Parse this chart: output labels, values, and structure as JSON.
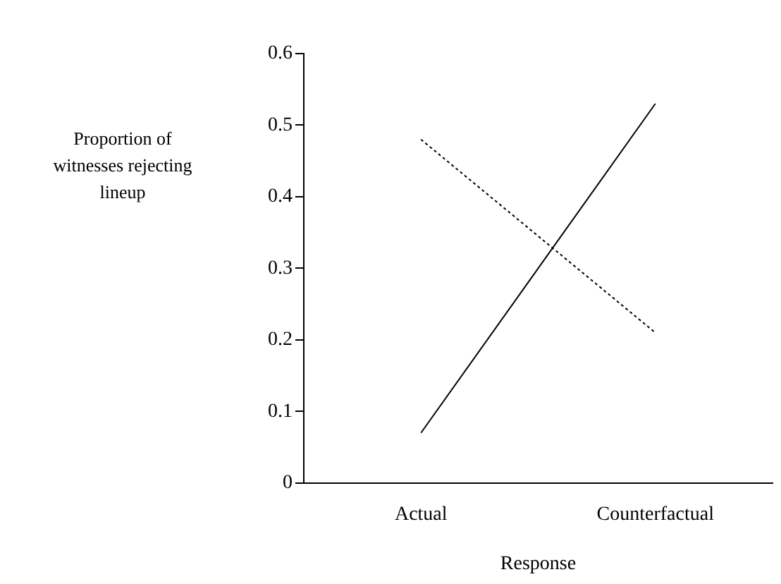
{
  "chart_data": {
    "type": "line",
    "xlabel": "Response",
    "ylabel": "Proportion of witnesses rejecting lineup",
    "categories": [
      "Actual",
      "Counterfactual"
    ],
    "series": [
      {
        "color": "#000000",
        "line_style": "solid",
        "values": [
          0.07,
          0.53
        ]
      },
      {
        "color": "#000000",
        "line_style": "dotted",
        "values": [
          0.48,
          0.21
        ]
      }
    ],
    "ylim": [
      0,
      0.6
    ],
    "yticks": [
      0,
      0.1,
      0.2,
      0.3,
      0.4,
      0.5,
      0.6
    ],
    "grid": false,
    "legend": false,
    "marker": "none"
  }
}
